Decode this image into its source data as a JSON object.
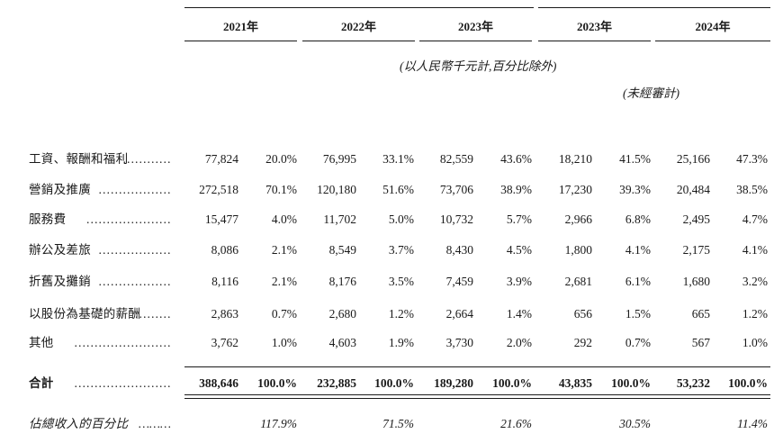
{
  "header": {
    "years": [
      "2021年",
      "2022年",
      "2023年",
      "2023年",
      "2024年"
    ],
    "unit_note": "(以人民幣千元計,百分比除外)",
    "unaudited_note": "(未經審計)"
  },
  "rows": [
    {
      "label": "工資、報酬和福利",
      "dots": "…………",
      "cells": [
        "77,824",
        "20.0%",
        "76,995",
        "33.1%",
        "82,559",
        "43.6%",
        "18,210",
        "41.5%",
        "25,166",
        "47.3%"
      ]
    },
    {
      "label": "營銷及推廣",
      "dots": "………………",
      "cells": [
        "272,518",
        "70.1%",
        "120,180",
        "51.6%",
        "73,706",
        "38.9%",
        "17,230",
        "39.3%",
        "20,484",
        "38.5%"
      ]
    },
    {
      "label": "服務費",
      "dots": "…………………",
      "cells": [
        "15,477",
        "4.0%",
        "11,702",
        "5.0%",
        "10,732",
        "5.7%",
        "2,966",
        "6.8%",
        "2,495",
        "4.7%"
      ]
    },
    {
      "label": "辦公及差旅",
      "dots": "………………",
      "cells": [
        "8,086",
        "2.1%",
        "8,549",
        "3.7%",
        "8,430",
        "4.5%",
        "1,800",
        "4.1%",
        "2,175",
        "4.1%"
      ]
    },
    {
      "label": "折舊及攤銷",
      "dots": "………………",
      "cells": [
        "8,116",
        "2.1%",
        "8,176",
        "3.5%",
        "7,459",
        "3.9%",
        "2,681",
        "6.1%",
        "1,680",
        "3.2%"
      ]
    },
    {
      "label": "以股份為基礎的薪酬",
      "dots": "………",
      "cells": [
        "2,863",
        "0.7%",
        "2,680",
        "1.2%",
        "2,664",
        "1.4%",
        "656",
        "1.5%",
        "665",
        "1.2%"
      ]
    },
    {
      "label": "其他",
      "dots": "……………………",
      "cells": [
        "3,762",
        "1.0%",
        "4,603",
        "1.9%",
        "3,730",
        "2.0%",
        "292",
        "0.7%",
        "567",
        "1.0%"
      ]
    }
  ],
  "total": {
    "label": "合計",
    "dots": "……………………",
    "cells": [
      "388,646",
      "100.0%",
      "232,885",
      "100.0%",
      "189,280",
      "100.0%",
      "43,835",
      "100.0%",
      "53,232",
      "100.0%"
    ]
  },
  "revenue_pct": {
    "label": "佔總收入的百分比",
    "dots": "………",
    "cells": [
      "117.9%",
      "71.5%",
      "21.6%",
      "30.5%",
      "11.4%"
    ]
  }
}
